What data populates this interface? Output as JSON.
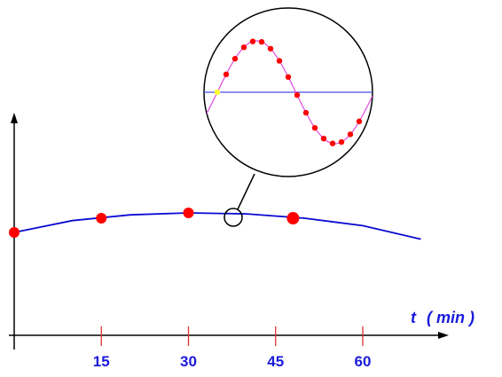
{
  "chart_data": {
    "type": "line",
    "xlabel_var": "t",
    "xlabel_unit": "( min )",
    "x_ticks": [
      "15",
      "30",
      "45",
      "60"
    ],
    "x_tick_values": [
      15,
      30,
      45,
      60
    ],
    "xlim": [
      0,
      70
    ],
    "ylabel": "",
    "grid": false,
    "legend": "none",
    "series": [
      {
        "values": [
          {
            "x": 0,
            "y": 0.2
          },
          {
            "x": 10,
            "y": 0.55
          },
          {
            "x": 20,
            "y": 0.72
          },
          {
            "x": 30,
            "y": 0.78
          },
          {
            "x": 40,
            "y": 0.75
          },
          {
            "x": 50,
            "y": 0.62
          },
          {
            "x": 60,
            "y": 0.4
          },
          {
            "x": 70,
            "y": 0.0
          }
        ]
      }
    ],
    "points": [
      {
        "x": 0,
        "y": 0.2
      },
      {
        "x": 15,
        "y": 0.62
      },
      {
        "x": 30,
        "y": 0.78
      },
      {
        "x": 48,
        "y": 0.62
      }
    ],
    "inset": {
      "description": "magnified view of the highlighted segment",
      "cycles": 1.3,
      "start_marker": "yellow"
    },
    "colors": {
      "axis": "#000000",
      "curve": "#0a0ad2",
      "tick": "#e03030",
      "point": "#ff0000",
      "sine": "#e04ce0",
      "inset_axis": "#4a4af0",
      "highlight": "#ffff33",
      "label": "#1a1adc"
    }
  }
}
